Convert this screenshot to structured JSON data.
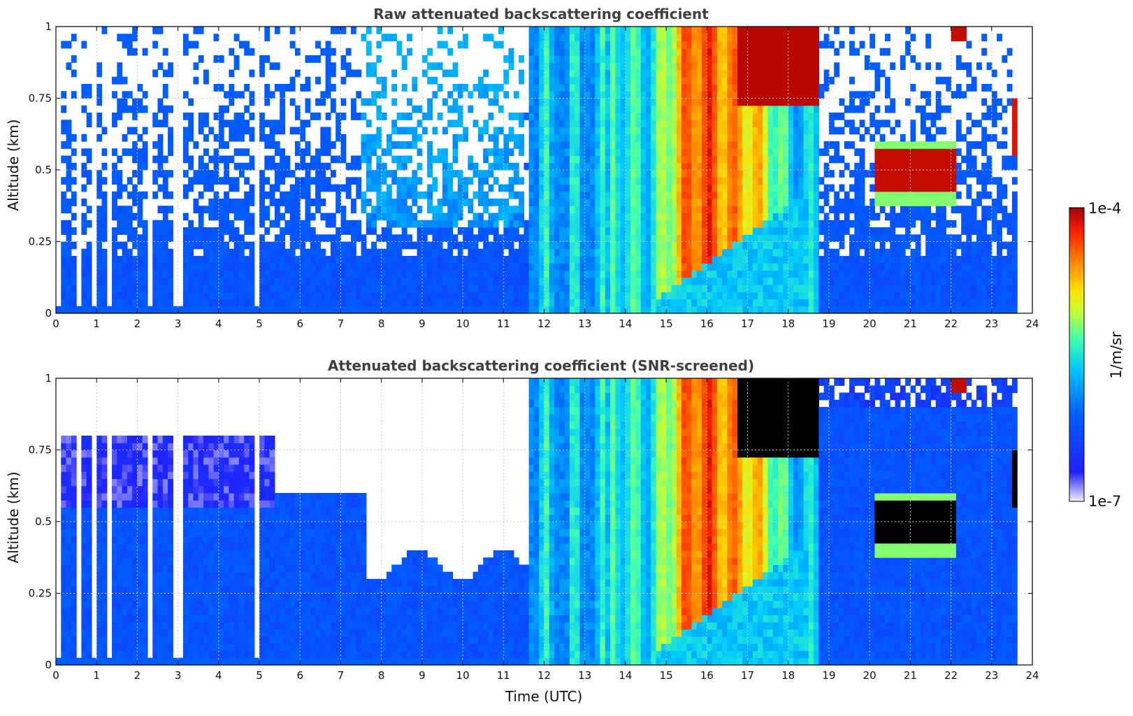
{
  "chart_data": {
    "type": "heatmap",
    "xlabel": "Time (UTC)",
    "xlim": [
      0,
      24
    ],
    "xticks": [
      "0",
      "1",
      "2",
      "3",
      "4",
      "5",
      "6",
      "7",
      "8",
      "9",
      "10",
      "11",
      "12",
      "13",
      "14",
      "15",
      "16",
      "17",
      "18",
      "19",
      "20",
      "21",
      "22",
      "23",
      "24"
    ],
    "ylim": [
      0,
      1
    ],
    "yticks": [
      "0",
      "0.25",
      "0.5",
      "0.75",
      "1"
    ],
    "grid": true,
    "panels": [
      {
        "title": "Raw attenuated backscattering coefficient",
        "ylabel": "Altitude (km)",
        "screened": false
      },
      {
        "title": "Attenuated backscattering coefficient (SNR-screened)",
        "ylabel": "Altitude (km)",
        "screened": true
      }
    ],
    "colorbar": {
      "label": "1/m/sr",
      "min_label": "1e-7",
      "max_label": "1e-4",
      "scale": "log",
      "colors": [
        "#f0f0ff",
        "#2020ff",
        "#0060ff",
        "#00c8ff",
        "#40ffb0",
        "#c8ff30",
        "#ffe000",
        "#ff8000",
        "#ff2000",
        "#a00000"
      ]
    }
  }
}
